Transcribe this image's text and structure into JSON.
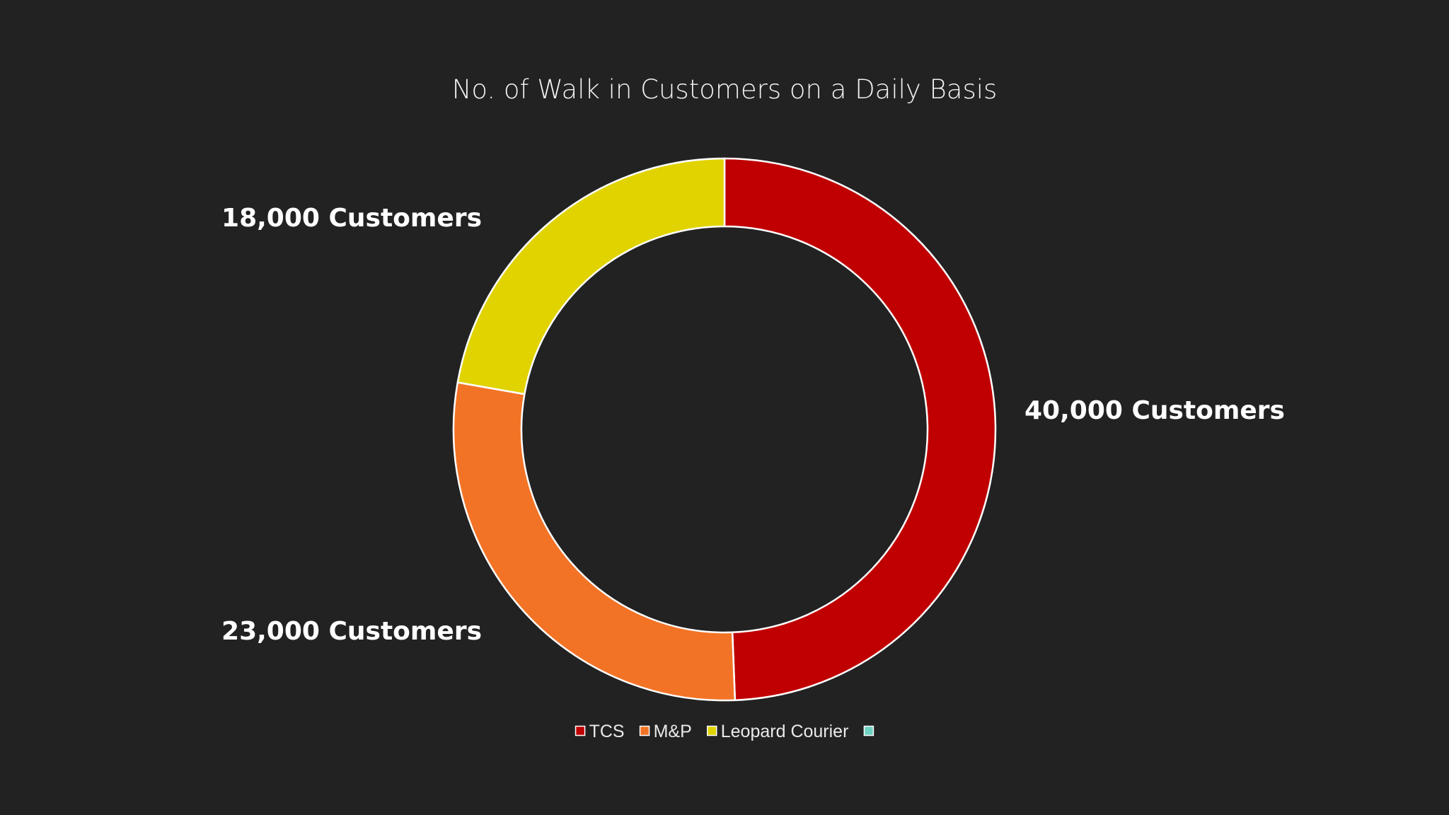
{
  "chart_data": {
    "type": "pie",
    "variant": "doughnut",
    "title": "No. of Walk in Customers on a Daily Basis",
    "categories": [
      "TCS",
      "M&P",
      "Leopard Courier",
      ""
    ],
    "values": [
      40000,
      23000,
      18000,
      0
    ],
    "data_labels": [
      "40,000 Customers",
      "23,000 Customers",
      "18,000 Customers",
      ""
    ],
    "colors": [
      "#c00000",
      "#f37326",
      "#e0d300",
      "#6fd1c2"
    ],
    "legend_position": "bottom"
  }
}
